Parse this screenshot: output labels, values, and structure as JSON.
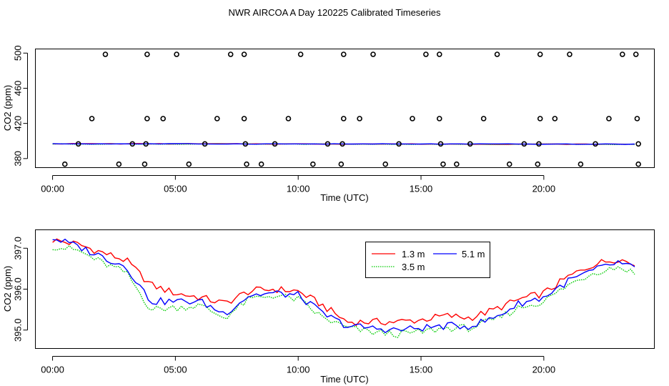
{
  "title": "NWR AIRCOA A  Day 120225  Calibrated Timeseries",
  "chart_data": [
    {
      "type": "scatter",
      "xlabel": "Time (UTC)",
      "ylabel": "CO2 (ppm)",
      "xlim": [
        -0.7,
        24.5
      ],
      "ylim": [
        369.7,
        504.7
      ],
      "xticks": [
        0,
        5,
        10,
        15,
        20
      ],
      "xtick_labels": [
        "00:00",
        "05:00",
        "10:00",
        "15:00",
        "20:00"
      ],
      "yticks": [
        380,
        420,
        460,
        500
      ],
      "ytick_labels": [
        "380",
        "420",
        "460",
        "500"
      ],
      "points": [
        [
          2.15,
          498.6
        ],
        [
          3.85,
          498.6
        ],
        [
          5.05,
          498.6
        ],
        [
          7.25,
          498.6
        ],
        [
          7.8,
          498.6
        ],
        [
          10.1,
          498.6
        ],
        [
          11.85,
          498.6
        ],
        [
          13.05,
          498.6
        ],
        [
          15.2,
          498.6
        ],
        [
          15.75,
          498.6
        ],
        [
          18.1,
          498.6
        ],
        [
          19.85,
          498.6
        ],
        [
          21.05,
          498.6
        ],
        [
          23.2,
          498.6
        ],
        [
          23.75,
          498.6
        ],
        [
          1.6,
          425.5
        ],
        [
          3.85,
          425.5
        ],
        [
          4.5,
          425.5
        ],
        [
          6.7,
          425.5
        ],
        [
          7.8,
          425.5
        ],
        [
          9.6,
          425.5
        ],
        [
          11.85,
          425.5
        ],
        [
          12.5,
          425.5
        ],
        [
          14.65,
          425.5
        ],
        [
          15.75,
          425.5
        ],
        [
          17.55,
          425.5
        ],
        [
          19.85,
          425.5
        ],
        [
          20.45,
          425.5
        ],
        [
          22.65,
          425.5
        ],
        [
          23.8,
          425.5
        ],
        [
          1.05,
          396.7
        ],
        [
          3.25,
          396.7
        ],
        [
          3.8,
          396.7
        ],
        [
          6.2,
          396.7
        ],
        [
          7.85,
          396.7
        ],
        [
          9.05,
          396.7
        ],
        [
          11.2,
          396.7
        ],
        [
          11.8,
          396.7
        ],
        [
          14.1,
          396.7
        ],
        [
          15.8,
          396.7
        ],
        [
          17.0,
          396.7
        ],
        [
          19.2,
          396.7
        ],
        [
          19.8,
          396.7
        ],
        [
          22.1,
          396.7
        ],
        [
          23.85,
          396.7
        ],
        [
          0.5,
          373.6
        ],
        [
          2.7,
          373.6
        ],
        [
          3.75,
          373.6
        ],
        [
          5.55,
          373.6
        ],
        [
          7.9,
          373.6
        ],
        [
          8.5,
          373.6
        ],
        [
          10.6,
          373.6
        ],
        [
          11.75,
          373.6
        ],
        [
          13.55,
          373.6
        ],
        [
          15.9,
          373.6
        ],
        [
          16.45,
          373.6
        ],
        [
          18.6,
          373.6
        ],
        [
          19.75,
          373.6
        ],
        [
          21.5,
          373.6
        ],
        [
          23.85,
          373.6
        ]
      ],
      "series": [
        {
          "name": "1.3 m",
          "color": "#ff0000",
          "x": [
            0,
            23.7
          ],
          "values": [
            396.9,
            396.3
          ]
        },
        {
          "name": "3.5 m",
          "color": "#00cc00",
          "x": [
            0,
            23.7
          ],
          "values": [
            396.6,
            396.2
          ]
        },
        {
          "name": "5.1 m",
          "color": "#0000ff",
          "x": [
            0,
            23.7
          ],
          "values": [
            396.8,
            396.4
          ]
        }
      ]
    },
    {
      "type": "line",
      "xlabel": "Time (UTC)",
      "ylabel": "CO2 (ppm)",
      "xlim": [
        -0.7,
        24.5
      ],
      "ylim": [
        394.55,
        397.45
      ],
      "xticks": [
        0,
        5,
        10,
        15,
        20
      ],
      "xtick_labels": [
        "00:00",
        "05:00",
        "10:00",
        "15:00",
        "20:00"
      ],
      "yticks": [
        395.0,
        396.0,
        397.0
      ],
      "ytick_labels": [
        "395.0",
        "396.0",
        "397.0"
      ],
      "legend": {
        "position": "top-center",
        "entries": [
          {
            "label": "1.3 m",
            "color": "#ff0000"
          },
          {
            "label": "5.1 m",
            "color": "#0000ff"
          },
          {
            "label": "3.5 m",
            "color": "#00cc00"
          }
        ]
      },
      "series": [
        {
          "name": "1.3 m",
          "color": "#ff0000",
          "x": [
            0,
            1,
            2,
            3,
            4,
            5,
            6,
            7,
            8,
            9,
            10,
            11,
            12,
            13,
            14,
            15,
            16,
            17,
            18,
            19,
            20,
            21,
            22,
            23,
            23.7
          ],
          "values": [
            397.2,
            397.1,
            396.9,
            396.7,
            396.1,
            395.9,
            395.8,
            395.65,
            395.95,
            396.0,
            395.95,
            395.6,
            395.2,
            395.2,
            395.2,
            395.25,
            395.35,
            395.3,
            395.5,
            395.75,
            395.9,
            396.3,
            396.6,
            396.75,
            396.6
          ]
        },
        {
          "name": "3.5 m",
          "color": "#00cc00",
          "x": [
            0,
            1,
            2,
            3,
            4,
            5,
            6,
            7,
            8,
            9,
            10,
            11,
            12,
            13,
            14,
            15,
            16,
            17,
            18,
            19,
            20,
            21,
            22,
            23,
            23.7
          ],
          "values": [
            397.05,
            396.95,
            396.65,
            396.4,
            395.5,
            395.55,
            395.6,
            395.3,
            395.75,
            395.85,
            395.75,
            395.3,
            395.05,
            394.95,
            394.9,
            394.95,
            395.05,
            395.05,
            395.25,
            395.55,
            395.7,
            396.1,
            396.4,
            396.55,
            396.4
          ]
        },
        {
          "name": "5.1 m",
          "color": "#0000ff",
          "x": [
            0,
            1,
            2,
            3,
            4,
            5,
            6,
            7,
            8,
            9,
            10,
            11,
            12,
            13,
            14,
            15,
            16,
            17,
            18,
            19,
            20,
            21,
            22,
            23,
            23.7
          ],
          "values": [
            397.25,
            397.05,
            396.8,
            396.55,
            395.7,
            395.7,
            395.7,
            395.4,
            395.85,
            395.9,
            395.85,
            395.4,
            395.1,
            395.05,
            395.0,
            395.05,
            395.1,
            395.1,
            395.3,
            395.65,
            395.8,
            396.2,
            396.45,
            396.65,
            396.5
          ]
        }
      ]
    }
  ]
}
